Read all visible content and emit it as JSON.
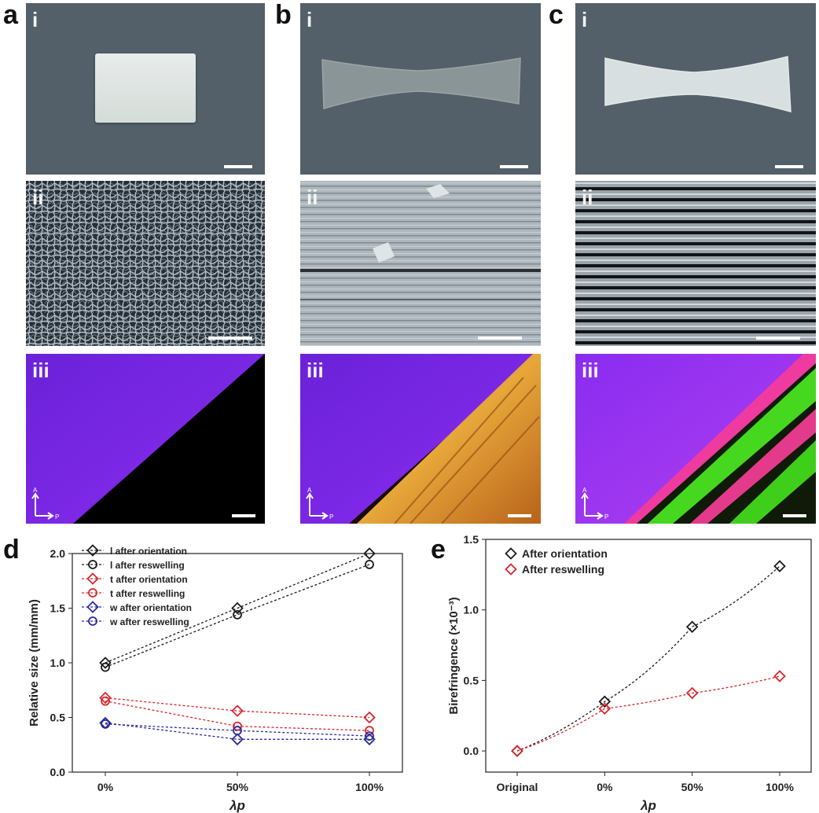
{
  "figure": {
    "panel_letters": [
      "a",
      "b",
      "c",
      "d",
      "e"
    ],
    "subpanel_labels": [
      "i",
      "ii",
      "iii"
    ],
    "polarizer_axis_labels": {
      "analyzer": "A",
      "polarizer": "P"
    }
  },
  "colors": {
    "photo_bg": "#53606a",
    "pol_bg": "#7a1fe8",
    "black_series": "#1a1a1a",
    "red_series": "#d8262c",
    "blue_series": "#2a2a9a"
  },
  "chart_data": [
    {
      "panel": "d",
      "type": "scatter",
      "title": "",
      "xlabel": "λp",
      "ylabel": "Relative size (mm/mm)",
      "categories": [
        "0%",
        "50%",
        "100%"
      ],
      "ylim": [
        0.0,
        2.0
      ],
      "yticks": [
        "0.0",
        "0.5",
        "1.0",
        "1.5",
        "2.0"
      ],
      "legend_position": "top-left",
      "series": [
        {
          "name": "l after orientation",
          "marker": "diamond",
          "color": "#1a1a1a",
          "values": [
            1.0,
            1.5,
            2.0
          ]
        },
        {
          "name": "l after reswelling",
          "marker": "circle",
          "color": "#1a1a1a",
          "values": [
            0.96,
            1.44,
            1.9
          ]
        },
        {
          "name": "t after orientation",
          "marker": "diamond",
          "color": "#d8262c",
          "values": [
            0.68,
            0.56,
            0.5
          ]
        },
        {
          "name": "t after reswelling",
          "marker": "circle",
          "color": "#d8262c",
          "values": [
            0.65,
            0.42,
            0.38
          ]
        },
        {
          "name": "w after orientation",
          "marker": "diamond",
          "color": "#2a2a9a",
          "values": [
            0.45,
            0.3,
            0.3
          ]
        },
        {
          "name": "w after reswelling",
          "marker": "circle",
          "color": "#2a2a9a",
          "values": [
            0.44,
            0.38,
            0.33
          ]
        }
      ]
    },
    {
      "panel": "e",
      "type": "scatter",
      "title": "",
      "xlabel": "λp",
      "ylabel": "Birefringence (×10⁻³)",
      "categories": [
        "Original",
        "0%",
        "50%",
        "100%"
      ],
      "ylim": [
        -0.15,
        1.5
      ],
      "yticks": [
        "0.0",
        "0.5",
        "1.0",
        "1.5"
      ],
      "legend_position": "top-left",
      "series": [
        {
          "name": "After orientation",
          "marker": "diamond",
          "color": "#1a1a1a",
          "values": [
            0.0,
            0.35,
            0.88,
            1.31
          ]
        },
        {
          "name": "After reswelling",
          "marker": "diamond",
          "color": "#d8262c",
          "values": [
            0.0,
            0.3,
            0.41,
            0.53
          ]
        }
      ]
    }
  ]
}
